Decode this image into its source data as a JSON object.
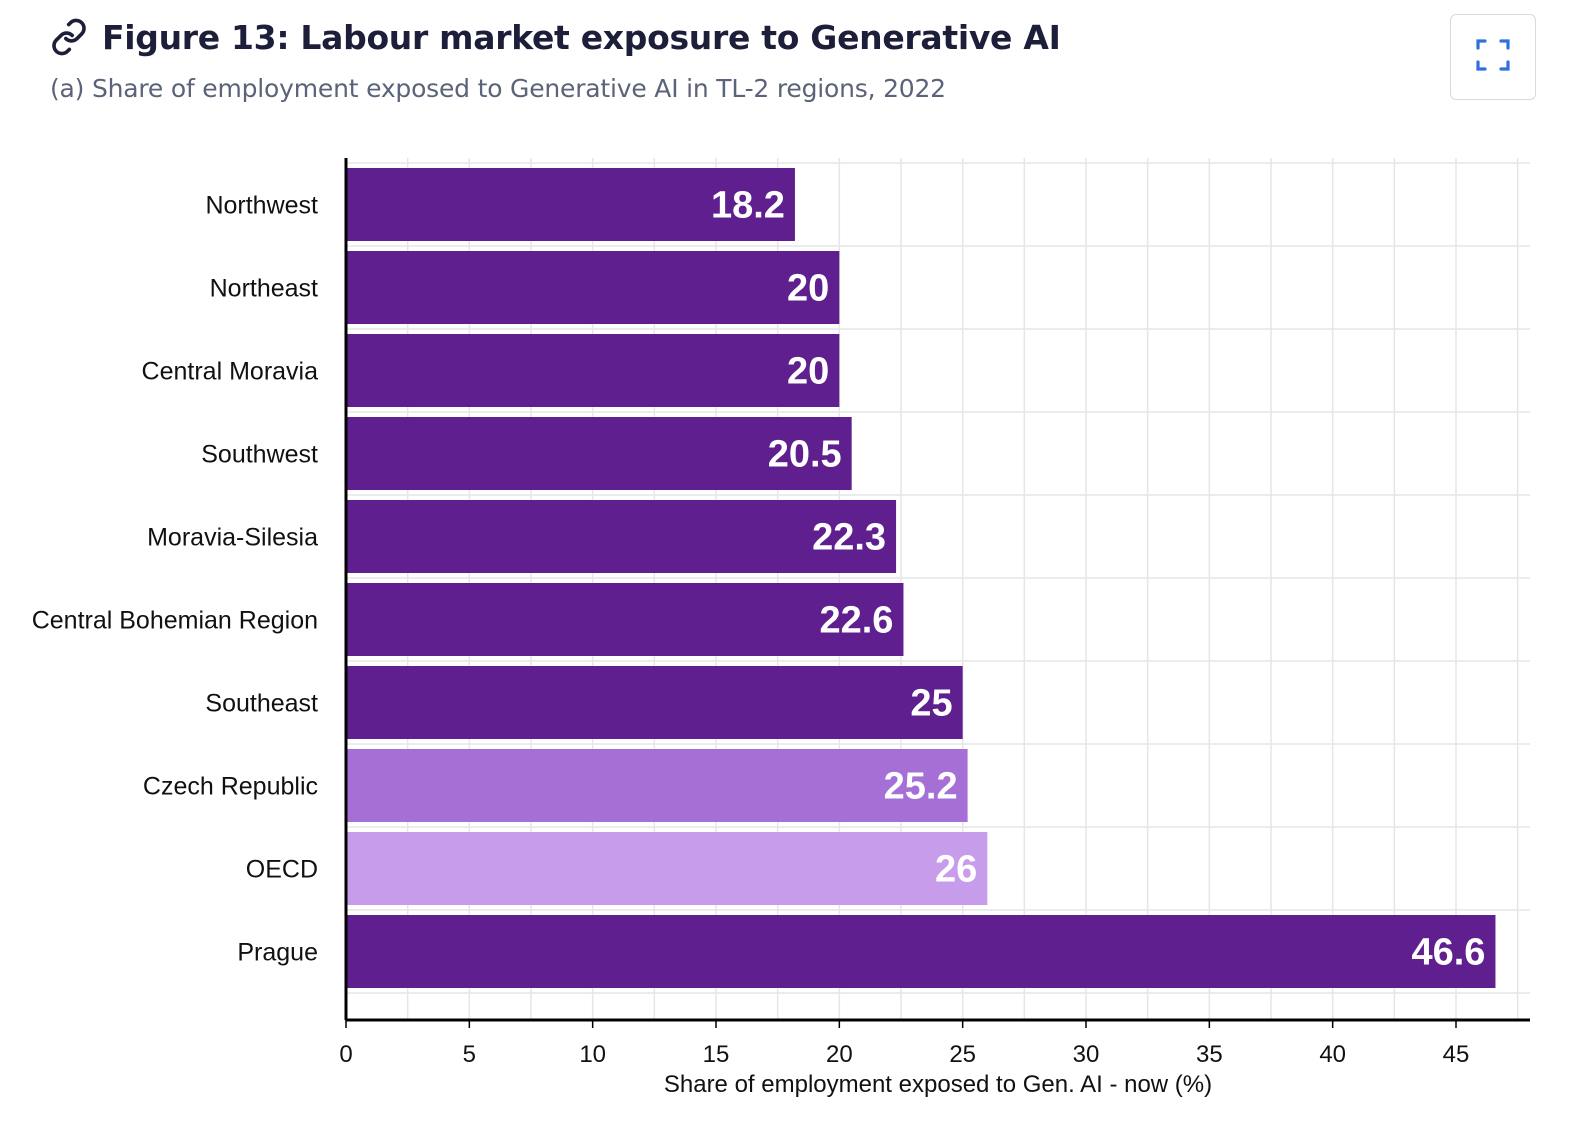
{
  "header": {
    "title": "Figure 13: Labour market exposure to Generative AI",
    "subtitle": "(a) Share of employment exposed to Generative AI in TL-2 regions, 2022",
    "link_icon": "link-icon",
    "expand_icon": "expand-icon"
  },
  "colors": {
    "region": "#5f1f8f",
    "czech_republic": "#a56fd6",
    "oecd": "#c79ceb",
    "grid": "#e6e6e6",
    "axis": "#000000",
    "label_text": "#ffffff"
  },
  "chart_data": {
    "type": "bar",
    "orientation": "horizontal",
    "categories": [
      "Northwest",
      "Northeast",
      "Central Moravia",
      "Southwest",
      "Moravia-Silesia",
      "Central Bohemian Region",
      "Southeast",
      "Czech Republic",
      "OECD",
      "Prague"
    ],
    "values": [
      18.2,
      20,
      20,
      20.5,
      22.3,
      22.6,
      25,
      25.2,
      26,
      46.6
    ],
    "data_labels": [
      "18.2",
      "20",
      "20",
      "20.5",
      "22.3",
      "22.6",
      "25",
      "25.2",
      "26",
      "46.6"
    ],
    "bar_colors": [
      "#5f1f8f",
      "#5f1f8f",
      "#5f1f8f",
      "#5f1f8f",
      "#5f1f8f",
      "#5f1f8f",
      "#5f1f8f",
      "#a56fd6",
      "#c79ceb",
      "#5f1f8f"
    ],
    "xlabel": "Share of employment exposed to Gen. AI - now (%)",
    "ylabel": "",
    "xlim": [
      0,
      48
    ],
    "xticks": [
      0,
      5,
      10,
      15,
      20,
      25,
      30,
      35,
      40,
      45
    ],
    "grid": true
  }
}
